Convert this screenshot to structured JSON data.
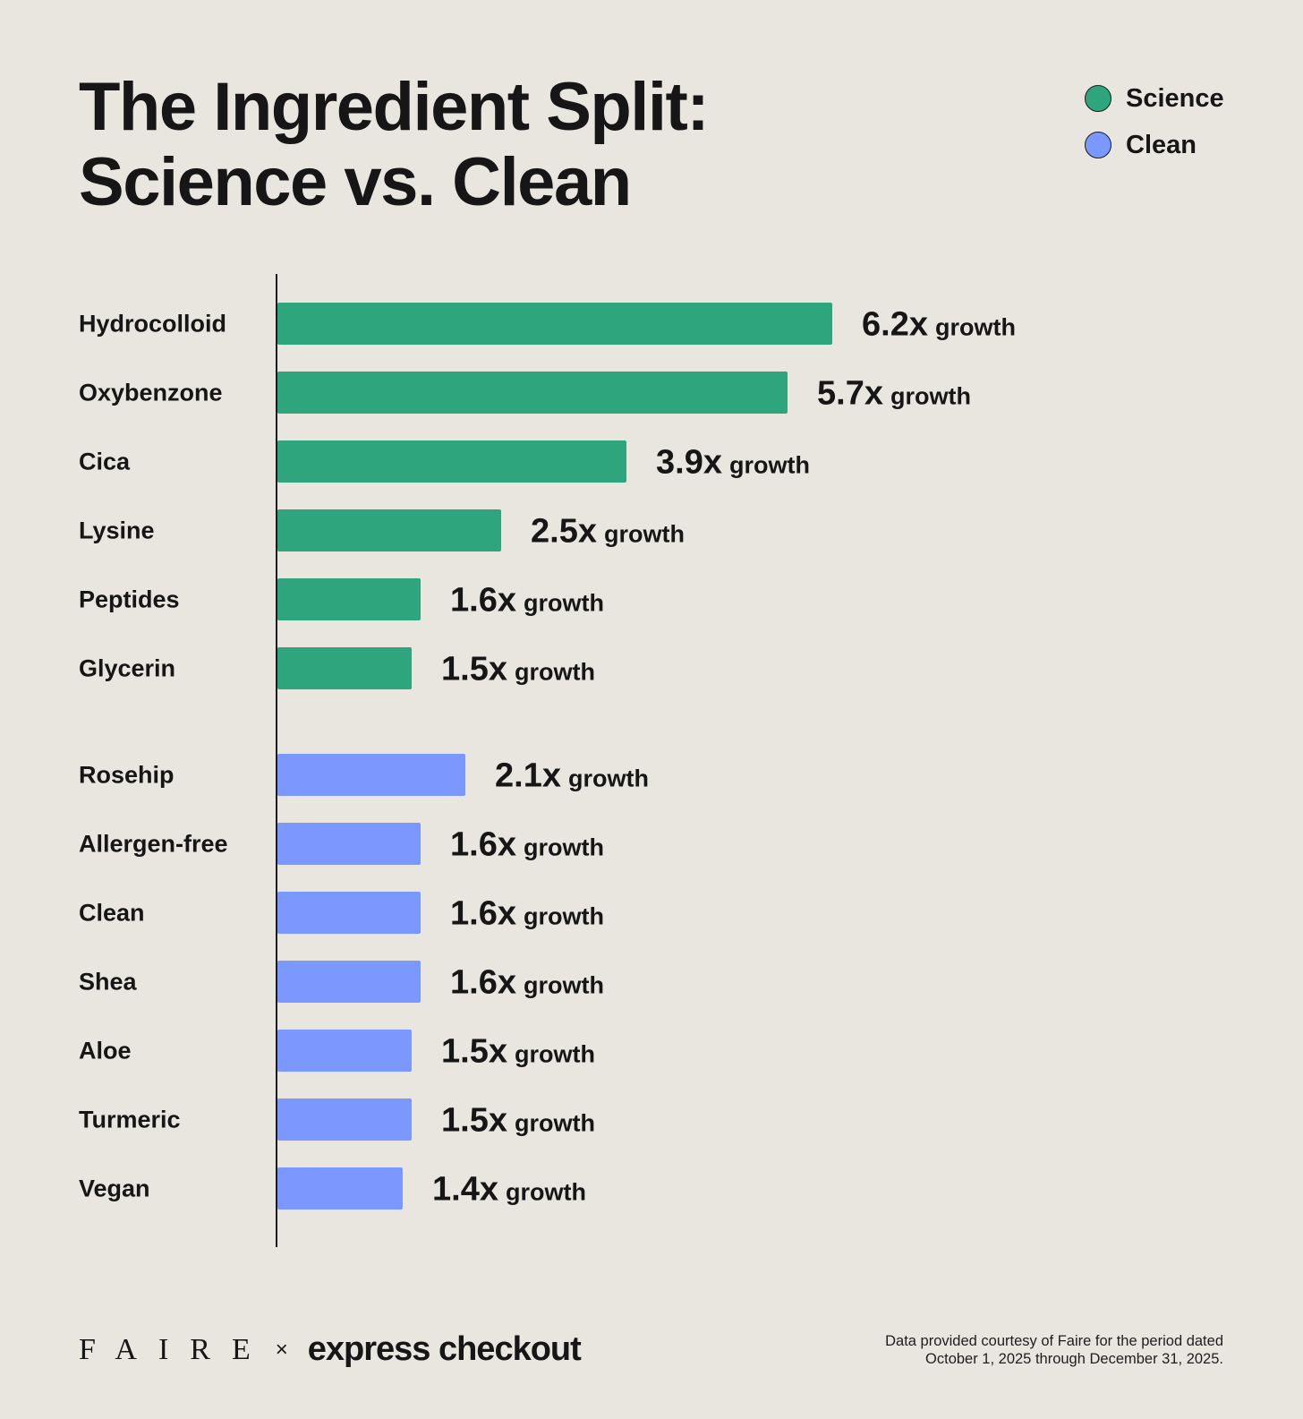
{
  "colors": {
    "science": "#2fa57d",
    "clean": "#7b98ff",
    "background": "#e9e6e0"
  },
  "chart_data": {
    "type": "bar",
    "orientation": "horizontal",
    "title": "The Ingredient Split:",
    "subtitle": "Science vs. Clean",
    "value_suffix": "growth",
    "legend": [
      {
        "label": "Science",
        "color": "#2fa57d"
      },
      {
        "label": "Clean",
        "color": "#7b98ff"
      }
    ],
    "legend_position": "top-right",
    "grid": false,
    "series": [
      {
        "name": "Science",
        "categories": [
          "Hydrocolloid",
          "Oxybenzone",
          "Cica",
          "Lysine",
          "Peptides",
          "Glycerin"
        ],
        "values": [
          6.2,
          5.7,
          3.9,
          2.5,
          1.6,
          1.5
        ],
        "labels": [
          "6.2x",
          "5.7x",
          "3.9x",
          "2.5x",
          "1.6x",
          "1.5x"
        ]
      },
      {
        "name": "Clean",
        "categories": [
          "Rosehip",
          "Allergen-free",
          "Clean",
          "Shea",
          "Aloe",
          "Turmeric",
          "Vegan"
        ],
        "values": [
          2.1,
          1.6,
          1.6,
          1.6,
          1.5,
          1.5,
          1.4
        ],
        "labels": [
          "2.1x",
          "1.6x",
          "1.6x",
          "1.6x",
          "1.5x",
          "1.5x",
          "1.4x"
        ]
      }
    ]
  },
  "footer": {
    "brand": "FAIRE",
    "separator": "×",
    "partner": "express checkout",
    "note_line1": "Data provided courtesy of Faire for the period dated",
    "note_line2": "October 1, 2025 through December 31, 2025."
  }
}
